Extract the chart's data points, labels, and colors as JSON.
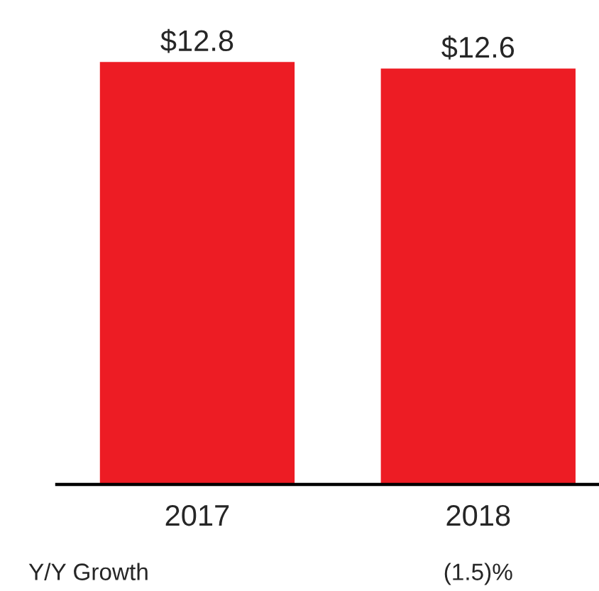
{
  "chart_data": {
    "type": "bar",
    "categories": [
      "2017",
      "2018"
    ],
    "values": [
      12.8,
      12.6
    ],
    "color": "#ed1c24",
    "value_labels": [
      "$12.8",
      "$12.6"
    ],
    "tick_labels": "x",
    "grid": false,
    "legend": false,
    "annotations": [
      "Y/Y Growth",
      "(1.5)%"
    ]
  }
}
